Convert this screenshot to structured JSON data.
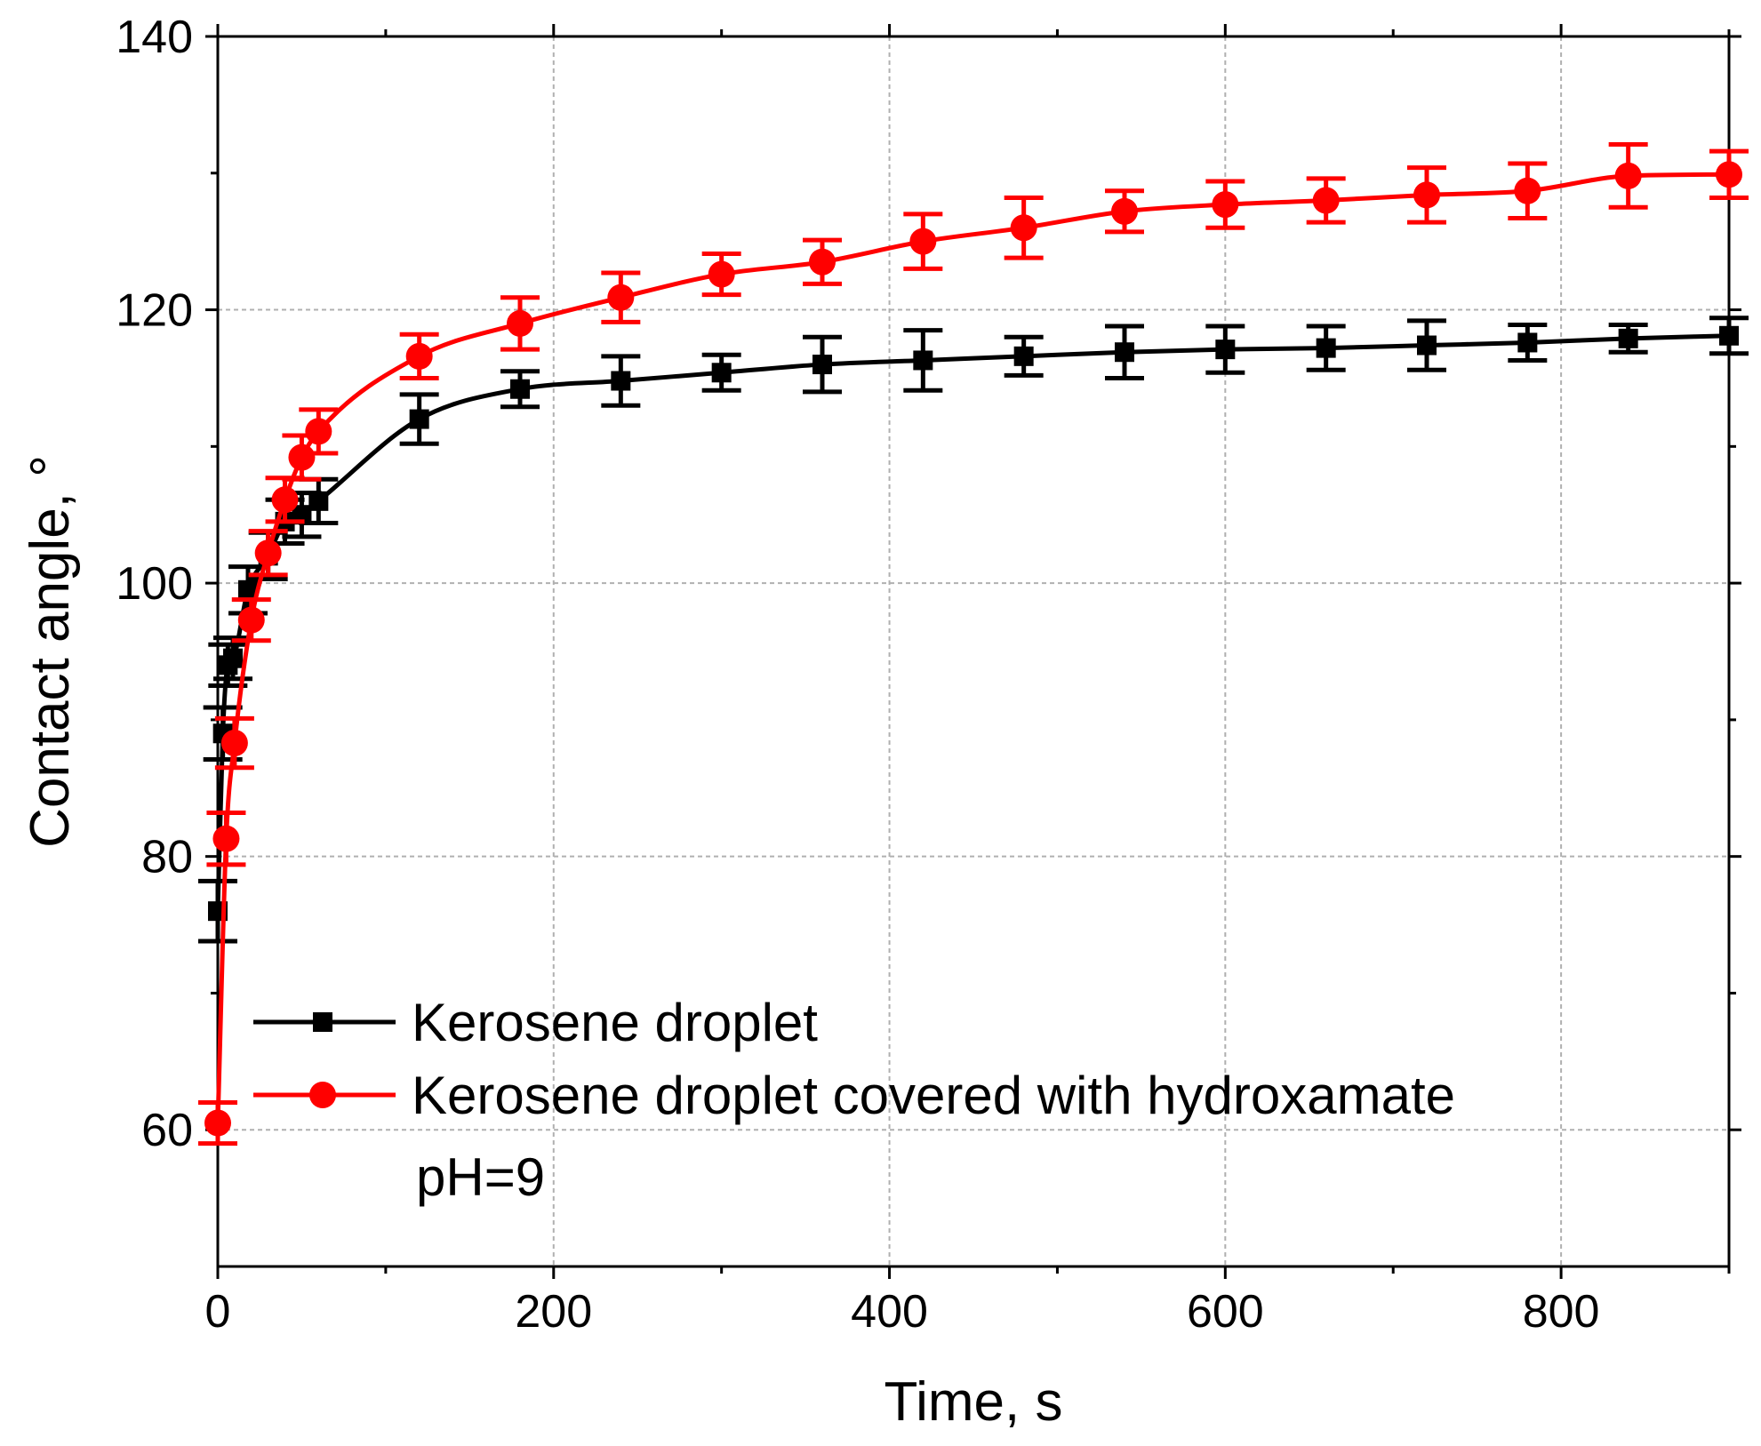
{
  "chart_data": {
    "type": "line",
    "title": "",
    "xlabel": "Time, s",
    "ylabel": "Contact angle, °",
    "xlim": [
      0,
      900
    ],
    "ylim": [
      50,
      140
    ],
    "xticks": [
      0,
      200,
      400,
      600,
      800
    ],
    "xticks_minor": [
      100,
      300,
      500,
      700,
      900
    ],
    "yticks": [
      60,
      80,
      100,
      120,
      140
    ],
    "yticks_minor": [
      70,
      90,
      110,
      130
    ],
    "grid": true,
    "legend_position": "lower-left",
    "annotation": "pH=9",
    "series": [
      {
        "name": "Kerosene droplet",
        "color": "#000000",
        "marker": "square",
        "x": [
          0,
          3,
          6,
          9,
          18,
          30,
          40,
          50,
          60,
          120,
          180,
          240,
          300,
          360,
          420,
          480,
          540,
          600,
          660,
          720,
          780,
          840,
          900
        ],
        "y": [
          76,
          89,
          94,
          94.5,
          99.5,
          102,
          104.5,
          105,
          106,
          112,
          114.2,
          114.8,
          115.4,
          116,
          116.3,
          116.6,
          116.9,
          117.1,
          117.2,
          117.4,
          117.6,
          117.9,
          118.1
        ],
        "err": [
          2.2,
          1.9,
          1.5,
          1.5,
          1.7,
          1.7,
          1.6,
          1.6,
          1.6,
          1.8,
          1.3,
          1.8,
          1.3,
          2.0,
          2.2,
          1.4,
          1.9,
          1.7,
          1.6,
          1.8,
          1.3,
          1.0,
          1.3
        ]
      },
      {
        "name": "Kerosene droplet covered with hydroxamate",
        "color": "#ff0000",
        "marker": "circle",
        "x": [
          0,
          5,
          10,
          20,
          30,
          40,
          50,
          60,
          120,
          180,
          240,
          300,
          360,
          420,
          480,
          540,
          600,
          660,
          720,
          780,
          840,
          900
        ],
        "y": [
          60.5,
          81.3,
          88.3,
          97.3,
          102.2,
          106.1,
          109.2,
          111.1,
          116.6,
          119,
          120.9,
          122.6,
          123.5,
          125,
          126,
          127.2,
          127.7,
          128,
          128.4,
          128.7,
          129.8,
          129.9
        ],
        "err": [
          1.5,
          1.9,
          1.8,
          1.5,
          1.6,
          1.6,
          1.6,
          1.6,
          1.6,
          1.9,
          1.8,
          1.5,
          1.6,
          2.0,
          2.2,
          1.5,
          1.7,
          1.6,
          2.0,
          2.0,
          2.3,
          1.7
        ]
      }
    ]
  }
}
